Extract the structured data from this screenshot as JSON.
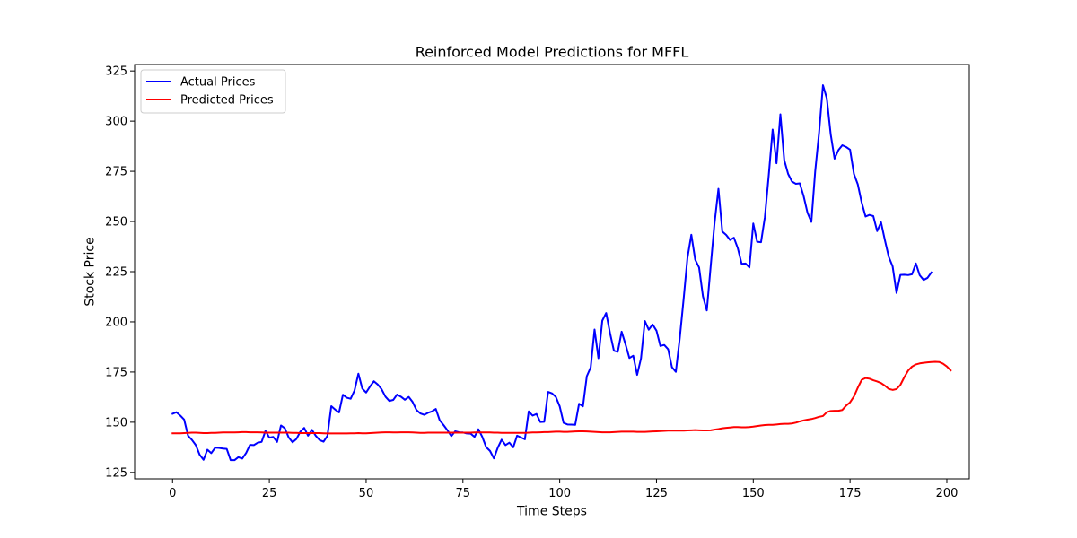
{
  "chart_data": {
    "type": "line",
    "title": "Reinforced Model Predictions for MFFL",
    "xlabel": "Time Steps",
    "ylabel": "Stock Price",
    "xlim": [
      -9.8,
      205.8
    ],
    "ylim": [
      121.8,
      328.2
    ],
    "x_ticks": [
      0,
      25,
      50,
      75,
      100,
      125,
      150,
      175,
      200
    ],
    "y_ticks": [
      125,
      150,
      175,
      200,
      225,
      250,
      275,
      300,
      325
    ],
    "grid": false,
    "legend_position": "top-left",
    "series": [
      {
        "name": "Actual Prices",
        "color": "#0000ff",
        "x_start": 0,
        "values": [
          154.2,
          155.0,
          153.3,
          151.3,
          143.3,
          141.2,
          138.6,
          133.8,
          131.3,
          136.3,
          134.6,
          137.3,
          137.2,
          136.9,
          136.7,
          131.1,
          131.1,
          132.6,
          131.9,
          134.7,
          138.7,
          138.6,
          139.8,
          140.2,
          145.7,
          142.3,
          142.7,
          140.2,
          148.4,
          147.0,
          142.4,
          140.0,
          141.7,
          145.3,
          147.2,
          143.3,
          146.2,
          143.2,
          141.1,
          140.3,
          143.2,
          158.0,
          156.3,
          154.9,
          163.7,
          162.2,
          161.7,
          165.8,
          174.2,
          166.8,
          164.8,
          167.8,
          170.4,
          168.8,
          166.4,
          162.7,
          160.6,
          161.1,
          163.8,
          162.7,
          161.2,
          162.6,
          160.1,
          156.1,
          154.4,
          153.7,
          154.7,
          155.4,
          156.6,
          151.0,
          148.6,
          146.0,
          143.1,
          145.5,
          145.0,
          144.9,
          144.4,
          144.3,
          142.7,
          146.5,
          142.7,
          137.6,
          135.7,
          132.0,
          137.3,
          141.3,
          138.6,
          139.8,
          137.5,
          143.3,
          142.4,
          141.5,
          155.4,
          153.3,
          154.1,
          150.1,
          150.2,
          165.1,
          164.4,
          162.6,
          157.9,
          149.7,
          148.9,
          148.8,
          148.7,
          159.2,
          157.9,
          172.9,
          177.3,
          196.2,
          181.9,
          200.6,
          204.4,
          194.4,
          185.6,
          185.1,
          195.1,
          188.8,
          182.0,
          183.1,
          173.6,
          181.8,
          200.4,
          196.1,
          198.7,
          195.6,
          188.0,
          188.5,
          186.4,
          177.4,
          175.1,
          191.7,
          211.2,
          231.9,
          243.4,
          231.0,
          227.1,
          212.7,
          205.7,
          227.8,
          249.3,
          266.3,
          245.0,
          243.3,
          240.8,
          241.9,
          236.7,
          228.9,
          229.1,
          227.1,
          249.0,
          239.9,
          239.7,
          252.2,
          273.2,
          295.8,
          279.0,
          303.4,
          280.6,
          273.7,
          269.9,
          268.8,
          269.0,
          262.7,
          254.4,
          249.8,
          275.1,
          294.3,
          317.9,
          311.3,
          293.4,
          281.3,
          285.6,
          288.0,
          287.1,
          285.8,
          273.7,
          268.5,
          259.5,
          252.5,
          253.3,
          252.7,
          245.2,
          249.6,
          240.7,
          232.4,
          227.6,
          214.4,
          223.4,
          223.5,
          223.3,
          223.7,
          229.1,
          223.2,
          220.9,
          221.9,
          224.6
        ]
      },
      {
        "name": "Predicted Prices",
        "color": "#ff0000",
        "x_start": 0,
        "values": [
          144.5,
          144.5,
          144.5,
          144.6,
          144.7,
          144.8,
          144.8,
          144.7,
          144.6,
          144.6,
          144.7,
          144.7,
          144.8,
          144.9,
          144.9,
          144.9,
          144.9,
          145.0,
          145.1,
          145.1,
          145.0,
          145.0,
          145.0,
          144.9,
          144.8,
          144.8,
          144.8,
          144.8,
          144.8,
          144.8,
          144.8,
          144.7,
          144.7,
          144.6,
          144.6,
          144.6,
          144.6,
          144.6,
          144.6,
          144.5,
          144.4,
          144.4,
          144.4,
          144.4,
          144.4,
          144.4,
          144.5,
          144.5,
          144.6,
          144.5,
          144.5,
          144.6,
          144.7,
          144.8,
          144.9,
          145.0,
          145.0,
          144.9,
          144.9,
          145.0,
          145.0,
          145.0,
          144.9,
          144.8,
          144.7,
          144.7,
          144.8,
          144.8,
          144.8,
          144.8,
          144.8,
          144.8,
          144.8,
          144.8,
          144.8,
          144.8,
          144.8,
          144.8,
          144.9,
          144.9,
          144.9,
          144.9,
          144.9,
          144.8,
          144.8,
          144.7,
          144.7,
          144.7,
          144.7,
          144.7,
          144.7,
          144.7,
          144.8,
          144.9,
          144.9,
          145.0,
          145.1,
          145.1,
          145.2,
          145.3,
          145.3,
          145.2,
          145.2,
          145.3,
          145.4,
          145.5,
          145.5,
          145.4,
          145.3,
          145.2,
          145.1,
          145.0,
          145.0,
          145.0,
          145.1,
          145.2,
          145.3,
          145.3,
          145.3,
          145.3,
          145.2,
          145.2,
          145.2,
          145.3,
          145.4,
          145.5,
          145.6,
          145.7,
          145.8,
          145.8,
          145.8,
          145.8,
          145.8,
          145.9,
          146.0,
          146.1,
          146.0,
          145.9,
          145.9,
          146.0,
          146.3,
          146.6,
          147.0,
          147.2,
          147.4,
          147.6,
          147.6,
          147.5,
          147.5,
          147.6,
          147.8,
          148.1,
          148.4,
          148.6,
          148.7,
          148.7,
          148.9,
          149.1,
          149.2,
          149.2,
          149.4,
          149.8,
          150.4,
          150.9,
          151.3,
          151.6,
          152.1,
          152.7,
          153.1,
          155.0,
          155.6,
          155.7,
          155.7,
          156.1,
          158.3,
          159.9,
          162.8,
          167.2,
          171.1,
          172.0,
          171.7,
          170.9,
          170.3,
          169.5,
          168.2,
          166.6,
          166.1,
          166.5,
          168.6,
          172.4,
          175.7,
          177.7,
          178.8,
          179.3,
          179.6,
          179.8,
          180.0,
          180.1,
          180.0,
          179.2,
          177.8,
          175.8
        ]
      }
    ]
  }
}
